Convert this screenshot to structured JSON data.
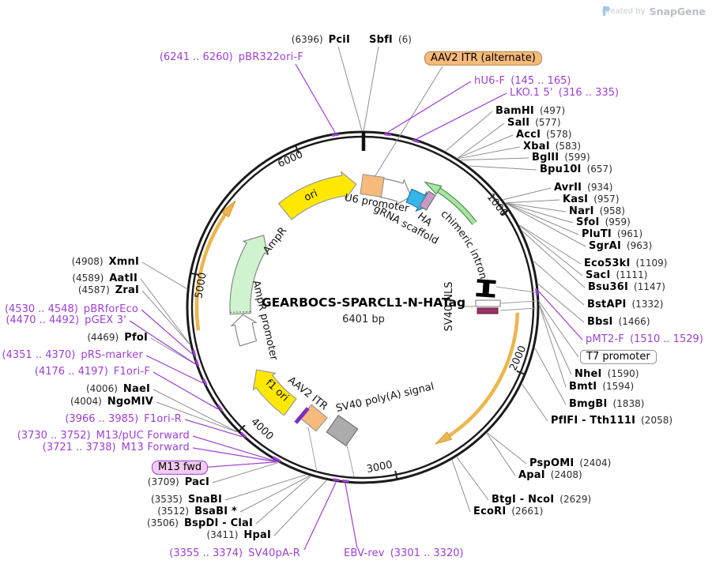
{
  "watermark": {
    "created_by": "Created by",
    "brand": "SnapGene"
  },
  "plasmid": {
    "name": "GEARBOCS-SPARCL1-N-HATag",
    "size": "6401 bp"
  },
  "scale_ticks": [
    "1000",
    "2000",
    "3000",
    "4000",
    "5000",
    "6000"
  ],
  "colors": {
    "primer_purple": "#9d3fd3",
    "enzyme_black": "#000000",
    "leader_gray": "#8f8f8f",
    "ori_yellow": "#ffe800",
    "ampr_green": "#cff3cf",
    "intron_green": "#a5e6a0",
    "itr_orange": "#f6ba7c",
    "grna_cyan": "#35b6e8",
    "ha_plum": "#c79bc7",
    "polya_gray": "#ababab",
    "orf_gold": "#edb54d",
    "nls_maroon": "#993366"
  },
  "features": [
    {
      "id": "ori",
      "label": "ori"
    },
    {
      "id": "u6",
      "label": "U6 promoter"
    },
    {
      "id": "grna",
      "label": "gRNA scaffold"
    },
    {
      "id": "ha",
      "label": "HA"
    },
    {
      "id": "intron",
      "label": "chimeric intron"
    },
    {
      "id": "nls",
      "label": "SV40 NLS"
    },
    {
      "id": "ampr",
      "label": "AmpR"
    },
    {
      "id": "amprprom",
      "label": "AmpR promoter"
    },
    {
      "id": "f1",
      "label": "f1 ori"
    },
    {
      "id": "aav2itr",
      "label": "AAV2 ITR"
    },
    {
      "id": "polya",
      "label": "SV40 poly(A) signal"
    }
  ],
  "sites": [
    {
      "id": "pci",
      "name": "PciI",
      "pos": "(6396)",
      "type": "enzyme",
      "order": "pf"
    },
    {
      "id": "sbf",
      "name": "SbfI",
      "pos": "(6)",
      "type": "enzyme",
      "order": "nf"
    },
    {
      "id": "aav2alt",
      "name": "AAV2 ITR (alternate)",
      "type": "boxed_orange"
    },
    {
      "id": "pbr322orif",
      "name": "pBR322ori-F",
      "pos": "(6241 .. 6260)",
      "type": "primer",
      "order": "pf"
    },
    {
      "id": "hu6f",
      "name": "hU6-F",
      "pos": "(145 .. 165)",
      "type": "primer",
      "order": "nf"
    },
    {
      "id": "lko15",
      "name": "LKO.1 5'",
      "pos": "(316 .. 335)",
      "type": "primer",
      "order": "nf"
    },
    {
      "id": "bamhi",
      "name": "BamHI",
      "pos": "(497)",
      "type": "enzyme",
      "order": "nf"
    },
    {
      "id": "sali",
      "name": "SalI",
      "pos": "(577)",
      "type": "enzyme",
      "order": "nf"
    },
    {
      "id": "acci",
      "name": "AccI",
      "pos": "(578)",
      "type": "enzyme",
      "order": "nf"
    },
    {
      "id": "xbai",
      "name": "XbaI",
      "pos": "(583)",
      "type": "enzyme",
      "order": "nf"
    },
    {
      "id": "bglii",
      "name": "BglII",
      "pos": "(599)",
      "type": "enzyme",
      "order": "nf"
    },
    {
      "id": "bpu10i",
      "name": "Bpu10I",
      "pos": "(657)",
      "type": "enzyme",
      "order": "nf"
    },
    {
      "id": "avrii",
      "name": "AvrII",
      "pos": "(934)",
      "type": "enzyme",
      "order": "nf"
    },
    {
      "id": "kasi",
      "name": "KasI",
      "pos": "(957)",
      "type": "enzyme",
      "order": "nf"
    },
    {
      "id": "nari",
      "name": "NarI",
      "pos": "(958)",
      "type": "enzyme",
      "order": "nf"
    },
    {
      "id": "sfoi",
      "name": "SfoI",
      "pos": "(959)",
      "type": "enzyme",
      "order": "nf"
    },
    {
      "id": "pluti",
      "name": "PluTI",
      "pos": "(961)",
      "type": "enzyme",
      "order": "nf"
    },
    {
      "id": "sgrai",
      "name": "SgrAI",
      "pos": "(963)",
      "type": "enzyme",
      "order": "nf"
    },
    {
      "id": "eco53ki",
      "name": "Eco53kI",
      "pos": "(1109)",
      "type": "enzyme",
      "order": "nf"
    },
    {
      "id": "saci",
      "name": "SacI",
      "pos": "(1111)",
      "type": "enzyme",
      "order": "nf"
    },
    {
      "id": "bsu36i",
      "name": "Bsu36I",
      "pos": "(1147)",
      "type": "enzyme",
      "order": "nf"
    },
    {
      "id": "bstapi",
      "name": "BstAPI",
      "pos": "(1332)",
      "type": "enzyme",
      "order": "nf"
    },
    {
      "id": "bbsi",
      "name": "BbsI",
      "pos": "(1466)",
      "type": "enzyme",
      "order": "nf"
    },
    {
      "id": "pmt2f",
      "name": "pMT2-F",
      "pos": "(1510 .. 1529)",
      "type": "primer",
      "order": "nf"
    },
    {
      "id": "t7",
      "name": "T7 promoter",
      "type": "boxed_white"
    },
    {
      "id": "nhei",
      "name": "NheI",
      "pos": "(1590)",
      "type": "enzyme",
      "order": "nf"
    },
    {
      "id": "bmti",
      "name": "BmtI",
      "pos": "(1594)",
      "type": "enzyme",
      "order": "nf"
    },
    {
      "id": "bmgbi",
      "name": "BmgBI",
      "pos": "(1838)",
      "type": "enzyme",
      "order": "nf"
    },
    {
      "id": "pflfi",
      "name": "PflFI - Tth111I",
      "pos": "(2058)",
      "type": "enzyme",
      "order": "nf"
    },
    {
      "id": "pspomi",
      "name": "PspOMI",
      "pos": "(2404)",
      "type": "enzyme",
      "order": "nf"
    },
    {
      "id": "apai",
      "name": "ApaI",
      "pos": "(2408)",
      "type": "enzyme",
      "order": "nf"
    },
    {
      "id": "btgi",
      "name": "BtgI - NcoI",
      "pos": "(2629)",
      "type": "enzyme",
      "order": "nf"
    },
    {
      "id": "ecori",
      "name": "EcoRI",
      "pos": "(2661)",
      "type": "enzyme",
      "order": "nf"
    },
    {
      "id": "ebvrev",
      "name": "EBV-rev",
      "pos": "(3301 .. 3320)",
      "type": "primer",
      "order": "nf"
    },
    {
      "id": "sv40par",
      "name": "SV40pA-R",
      "pos": "(3355 .. 3374)",
      "type": "primer",
      "order": "pf"
    },
    {
      "id": "hpai",
      "name": "HpaI",
      "pos": "(3411)",
      "type": "enzyme",
      "order": "pf"
    },
    {
      "id": "bspdi",
      "name": "BspDI - ClaI",
      "pos": "(3506)",
      "type": "enzyme",
      "order": "pf"
    },
    {
      "id": "bsabi",
      "name": "BsaBI *",
      "pos": "(3512)",
      "type": "enzyme",
      "order": "pf"
    },
    {
      "id": "snabi",
      "name": "SnaBI",
      "pos": "(3535)",
      "type": "enzyme",
      "order": "pf"
    },
    {
      "id": "paci",
      "name": "PacI",
      "pos": "(3709)",
      "type": "enzyme",
      "order": "pf"
    },
    {
      "id": "m13fwd",
      "name": "M13 fwd",
      "type": "boxed_purple"
    },
    {
      "id": "m13forward",
      "name": "M13 Forward",
      "pos": "(3721 .. 3738)",
      "type": "primer",
      "order": "pf"
    },
    {
      "id": "m13puc",
      "name": "M13/pUC Forward",
      "pos": "(3730 .. 3752)",
      "type": "primer",
      "order": "pf"
    },
    {
      "id": "f1orir",
      "name": "F1ori-R",
      "pos": "(3966 .. 3985)",
      "type": "primer",
      "order": "pf"
    },
    {
      "id": "ngomiv",
      "name": "NgoMIV",
      "pos": "(4004)",
      "type": "enzyme",
      "order": "pf"
    },
    {
      "id": "naei",
      "name": "NaeI",
      "pos": "(4006)",
      "type": "enzyme",
      "order": "pf"
    },
    {
      "id": "f1orif",
      "name": "F1ori-F",
      "pos": "(4176 .. 4197)",
      "type": "primer",
      "order": "pf"
    },
    {
      "id": "prsmarker",
      "name": "pRS-marker",
      "pos": "(4351 .. 4370)",
      "type": "primer",
      "order": "pf"
    },
    {
      "id": "pfoi",
      "name": "PfoI",
      "pos": "(4469)",
      "type": "enzyme",
      "order": "pf"
    },
    {
      "id": "pgex3",
      "name": "pGEX 3'",
      "pos": "(4470 .. 4492)",
      "type": "primer",
      "order": "pf"
    },
    {
      "id": "pbrforeco",
      "name": "pBRforEco",
      "pos": "(4530 .. 4548)",
      "type": "primer",
      "order": "pf"
    },
    {
      "id": "zrai",
      "name": "ZraI",
      "pos": "(4587)",
      "type": "enzyme",
      "order": "pf"
    },
    {
      "id": "aatii",
      "name": "AatII",
      "pos": "(4589)",
      "type": "enzyme",
      "order": "pf"
    },
    {
      "id": "xmni",
      "name": "XmnI",
      "pos": "(4908)",
      "type": "enzyme",
      "order": "pf"
    }
  ]
}
